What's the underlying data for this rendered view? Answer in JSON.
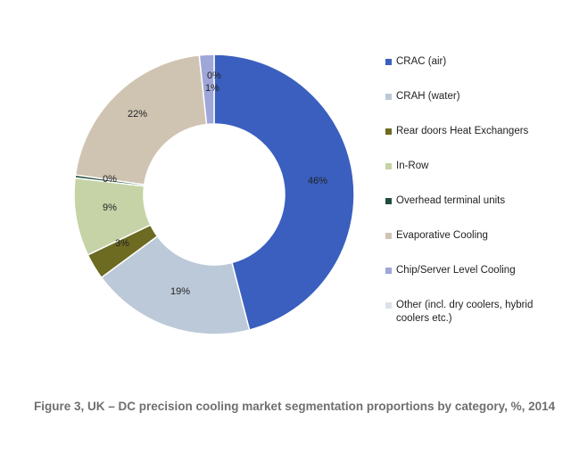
{
  "chart_data": {
    "type": "pie",
    "variant": "donut",
    "categories": [
      "CRAC (air)",
      "CRAH (water)",
      "Rear doors Heat Exchangers",
      "In-Row",
      "Overhead terminal units",
      "Evaporative Cooling",
      "Chip/Server Level Cooling",
      "Other (incl. dry coolers, hybrid coolers etc.)"
    ],
    "values": [
      46,
      19,
      3,
      9,
      0,
      22,
      1,
      0
    ],
    "labels": [
      "46%",
      "19%",
      "3%",
      "9%",
      "0%",
      "22%",
      "1%",
      "0%"
    ],
    "colors": [
      "#3a5fbf",
      "#bcc9d9",
      "#6d6a22",
      "#c5d3a6",
      "#1f4d3a",
      "#cfc4b2",
      "#9fa6d8",
      "#dde2ea"
    ],
    "legend_position": "right"
  },
  "caption": "Figure 3, UK – DC precision cooling market segmentation proportions by category, %, 2014"
}
